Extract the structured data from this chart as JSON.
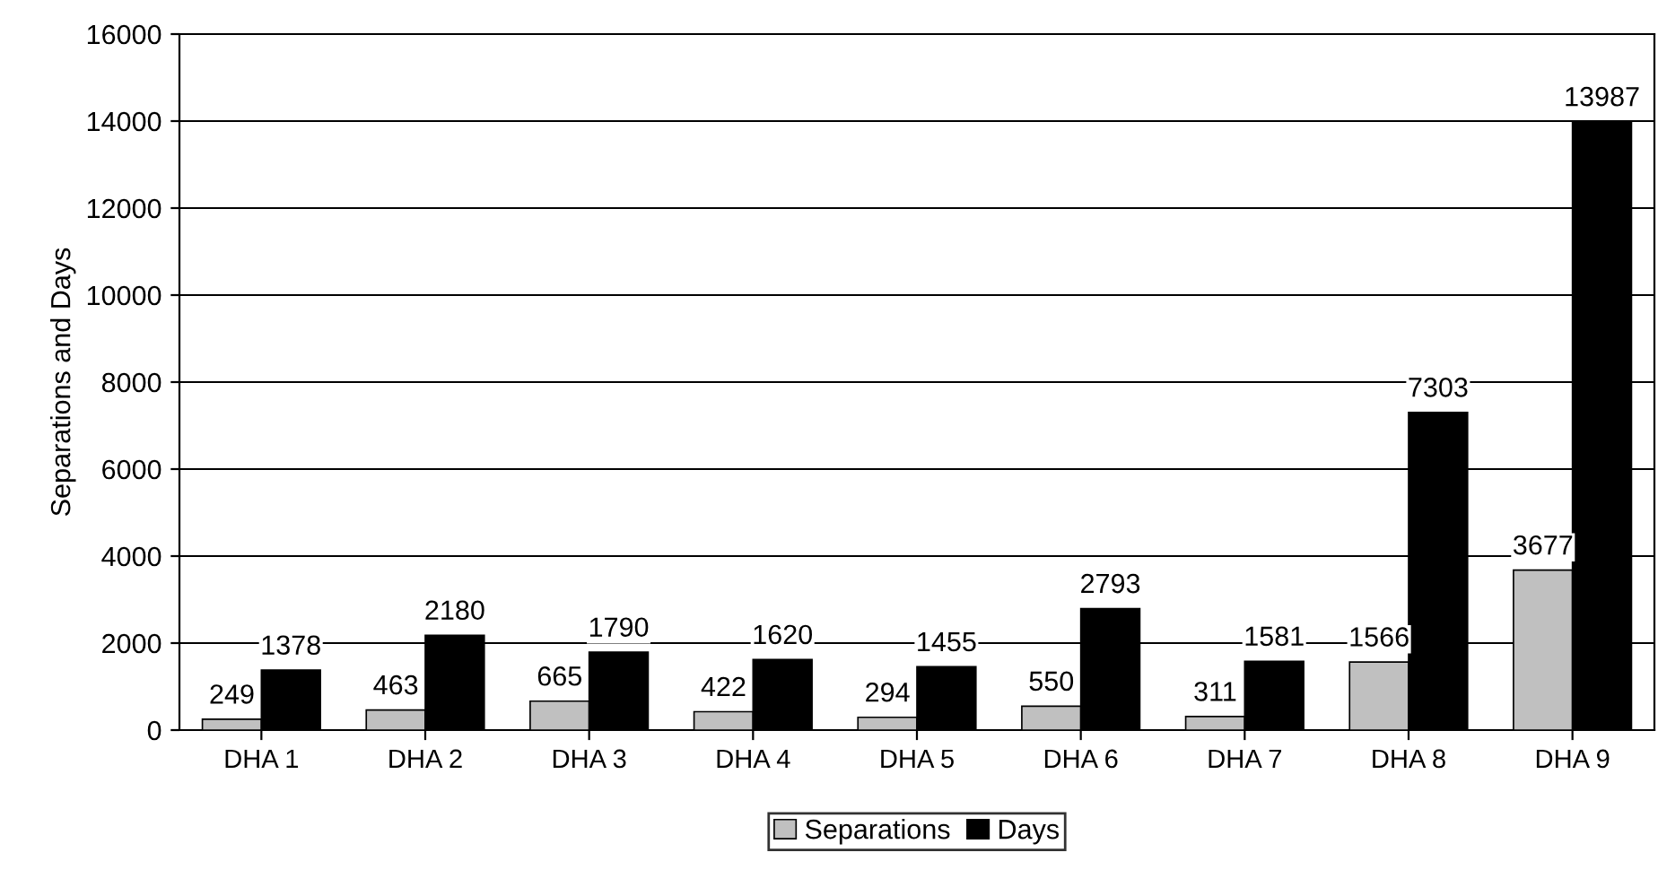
{
  "chart_data": {
    "type": "bar",
    "ylabel": "Separations and Days",
    "categories": [
      "DHA 1",
      "DHA 2",
      "DHA 3",
      "DHA 4",
      "DHA 5",
      "DHA 6",
      "DHA 7",
      "DHA 8",
      "DHA 9"
    ],
    "series": [
      {
        "name": "Separations",
        "color": "#c0c0c0",
        "values": [
          249,
          463,
          665,
          422,
          294,
          550,
          311,
          1566,
          3677
        ]
      },
      {
        "name": "Days",
        "color": "#000000",
        "values": [
          1378,
          2180,
          1790,
          1620,
          1455,
          2793,
          1581,
          7303,
          13987
        ]
      }
    ],
    "ylim": [
      0,
      16000
    ],
    "yticks": [
      0,
      2000,
      4000,
      6000,
      8000,
      10000,
      12000,
      14000,
      16000
    ],
    "grid": "y",
    "legend": "bottom",
    "data_labels": true
  }
}
